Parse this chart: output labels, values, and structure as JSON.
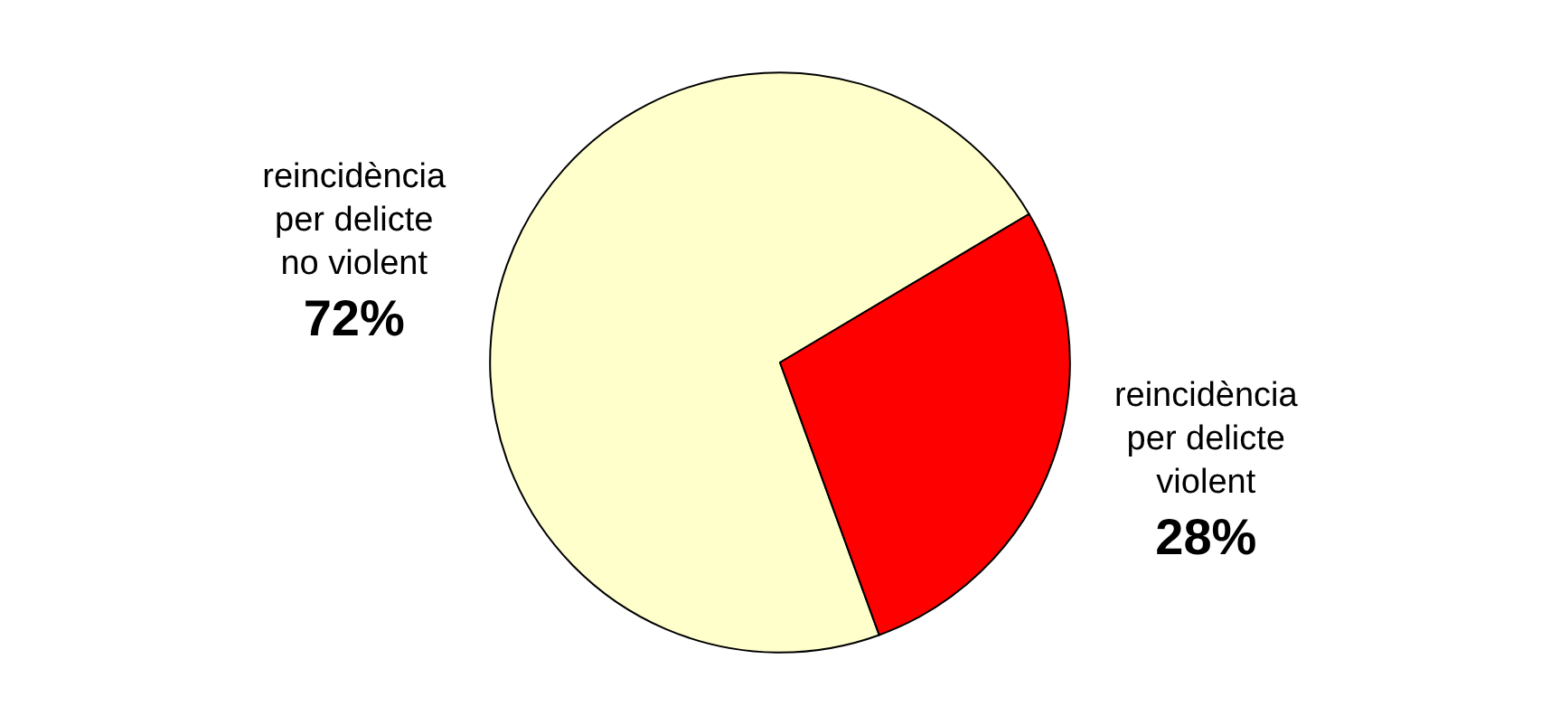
{
  "chart_data": {
    "type": "pie",
    "categories": [
      "reincidència per delicte no violent",
      "reincidència per delicte violent"
    ],
    "values": [
      72,
      28
    ],
    "value_labels": [
      "72%",
      "28%"
    ],
    "colors": [
      "#ffffcc",
      "#ff0000"
    ],
    "legend": false
  }
}
